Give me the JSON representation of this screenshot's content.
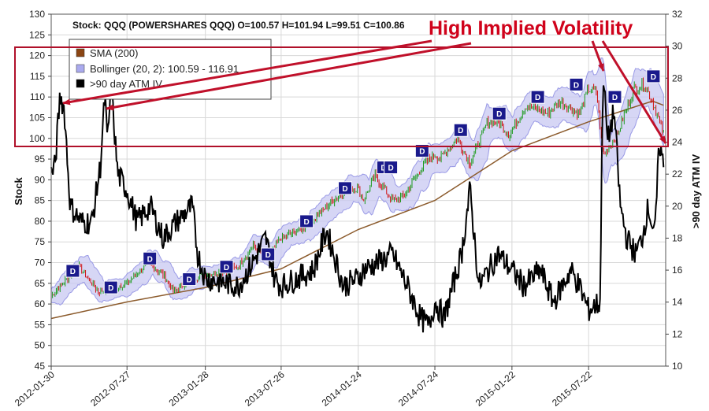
{
  "chart_data": {
    "type": "line",
    "title": "Stock: QQQ (POWERSHARES QQQ) O=100.57  H=101.94  L=99.51  C=100.86",
    "callout": "High Implied Volatility",
    "ylabel_left": "Stock",
    "ylabel_right": ">90 day ATM IV",
    "ylim_left": [
      45,
      130
    ],
    "ylim_right": [
      10,
      32
    ],
    "yticks_left": [
      45,
      50,
      55,
      60,
      65,
      70,
      75,
      80,
      85,
      90,
      95,
      100,
      105,
      110,
      115,
      120,
      125,
      130
    ],
    "yticks_right": [
      10,
      12,
      14,
      16,
      18,
      20,
      22,
      24,
      26,
      28,
      30,
      32
    ],
    "x_tick_labels": [
      "2012-01-30",
      "2012-07-27",
      "2013-01-28",
      "2013-07-26",
      "2014-01-24",
      "2014-07-24",
      "2015-01-22",
      "2015-07-22"
    ],
    "grid": true,
    "legend_position": "top-left",
    "legend": [
      {
        "label": "SMA (200)",
        "color": "#8b4513"
      },
      {
        "label": "Bollinger (20, 2): 100.59 - 116.91",
        "color": "#aaaaee"
      },
      {
        "label": ">90 day ATM IV",
        "color": "#000000"
      }
    ],
    "price_keypoints": [
      {
        "date": "2012-01-30",
        "close": 62
      },
      {
        "date": "2012-03-15",
        "close": 67
      },
      {
        "date": "2012-04-05",
        "close": 69
      },
      {
        "date": "2012-05-20",
        "close": 63
      },
      {
        "date": "2012-06-30",
        "close": 64
      },
      {
        "date": "2012-07-27",
        "close": 65
      },
      {
        "date": "2012-09-15",
        "close": 70
      },
      {
        "date": "2012-10-20",
        "close": 67
      },
      {
        "date": "2012-11-15",
        "close": 63
      },
      {
        "date": "2012-12-20",
        "close": 66
      },
      {
        "date": "2013-01-28",
        "close": 67
      },
      {
        "date": "2013-03-15",
        "close": 68
      },
      {
        "date": "2013-04-15",
        "close": 69
      },
      {
        "date": "2013-05-20",
        "close": 74
      },
      {
        "date": "2013-06-25",
        "close": 71
      },
      {
        "date": "2013-07-26",
        "close": 76
      },
      {
        "date": "2013-09-10",
        "close": 78
      },
      {
        "date": "2013-10-15",
        "close": 81
      },
      {
        "date": "2013-11-25",
        "close": 85
      },
      {
        "date": "2013-12-31",
        "close": 88
      },
      {
        "date": "2014-01-24",
        "close": 88
      },
      {
        "date": "2014-02-05",
        "close": 85
      },
      {
        "date": "2014-03-05",
        "close": 91
      },
      {
        "date": "2014-04-15",
        "close": 85
      },
      {
        "date": "2014-05-10",
        "close": 86
      },
      {
        "date": "2014-06-30",
        "close": 94
      },
      {
        "date": "2014-07-24",
        "close": 96
      },
      {
        "date": "2014-08-05",
        "close": 95
      },
      {
        "date": "2014-09-15",
        "close": 100
      },
      {
        "date": "2014-10-15",
        "close": 94
      },
      {
        "date": "2014-11-25",
        "close": 104
      },
      {
        "date": "2014-12-20",
        "close": 104
      },
      {
        "date": "2015-01-15",
        "close": 101
      },
      {
        "date": "2015-02-25",
        "close": 108
      },
      {
        "date": "2015-04-15",
        "close": 106
      },
      {
        "date": "2015-05-15",
        "close": 109
      },
      {
        "date": "2015-06-30",
        "close": 106
      },
      {
        "date": "2015-07-22",
        "close": 112
      },
      {
        "date": "2015-08-10",
        "close": 111
      },
      {
        "date": "2015-08-25",
        "close": 96
      },
      {
        "date": "2015-09-28",
        "close": 101
      },
      {
        "date": "2015-11-05",
        "close": 112
      },
      {
        "date": "2015-12-01",
        "close": 113
      },
      {
        "date": "2015-12-20",
        "close": 109
      },
      {
        "date": "2016-01-15",
        "close": 101
      }
    ],
    "sma200_keypoints": [
      {
        "date": "2012-01-30",
        "close": 56.5
      },
      {
        "date": "2012-07-27",
        "close": 60.5
      },
      {
        "date": "2013-01-28",
        "close": 64
      },
      {
        "date": "2013-07-26",
        "close": 68.5
      },
      {
        "date": "2014-01-24",
        "close": 78
      },
      {
        "date": "2014-07-24",
        "close": 85
      },
      {
        "date": "2015-01-22",
        "close": 97
      },
      {
        "date": "2015-07-22",
        "close": 104
      },
      {
        "date": "2015-12-20",
        "close": 109
      },
      {
        "date": "2016-01-15",
        "close": 108
      }
    ],
    "iv_keypoints": [
      {
        "date": "2012-01-30",
        "iv": 22
      },
      {
        "date": "2012-02-08",
        "iv": 22.5
      },
      {
        "date": "2012-02-20",
        "iv": 27
      },
      {
        "date": "2012-03-01",
        "iv": 26
      },
      {
        "date": "2012-03-15",
        "iv": 20
      },
      {
        "date": "2012-04-10",
        "iv": 19
      },
      {
        "date": "2012-05-05",
        "iv": 19
      },
      {
        "date": "2012-05-25",
        "iv": 22.5
      },
      {
        "date": "2012-06-05",
        "iv": 27
      },
      {
        "date": "2012-06-10",
        "iv": 24
      },
      {
        "date": "2012-06-20",
        "iv": 27.3
      },
      {
        "date": "2012-07-05",
        "iv": 22
      },
      {
        "date": "2012-07-27",
        "iv": 21
      },
      {
        "date": "2012-08-20",
        "iv": 19
      },
      {
        "date": "2012-09-20",
        "iv": 20
      },
      {
        "date": "2012-10-20",
        "iv": 18
      },
      {
        "date": "2012-11-20",
        "iv": 19
      },
      {
        "date": "2012-12-28",
        "iv": 20
      },
      {
        "date": "2013-01-10",
        "iv": 17
      },
      {
        "date": "2013-01-28",
        "iv": 15.5
      },
      {
        "date": "2013-04-15",
        "iv": 15
      },
      {
        "date": "2013-05-10",
        "iv": 16
      },
      {
        "date": "2013-06-20",
        "iv": 18
      },
      {
        "date": "2013-07-10",
        "iv": 15.5
      },
      {
        "date": "2013-07-26",
        "iv": 15
      },
      {
        "date": "2013-10-10",
        "iv": 16
      },
      {
        "date": "2013-11-10",
        "iv": 18.5
      },
      {
        "date": "2013-12-20",
        "iv": 15
      },
      {
        "date": "2014-01-24",
        "iv": 15.5
      },
      {
        "date": "2014-02-05",
        "iv": 16
      },
      {
        "date": "2014-04-15",
        "iv": 17
      },
      {
        "date": "2014-05-20",
        "iv": 15
      },
      {
        "date": "2014-06-20",
        "iv": 13
      },
      {
        "date": "2014-07-10",
        "iv": 12.5
      },
      {
        "date": "2014-07-24",
        "iv": 14
      },
      {
        "date": "2014-08-15",
        "iv": 13
      },
      {
        "date": "2014-09-25",
        "iv": 17
      },
      {
        "date": "2014-10-15",
        "iv": 21
      },
      {
        "date": "2014-11-05",
        "iv": 15
      },
      {
        "date": "2014-12-20",
        "iv": 17
      },
      {
        "date": "2015-01-22",
        "iv": 16
      },
      {
        "date": "2015-02-20",
        "iv": 15
      },
      {
        "date": "2015-03-30",
        "iv": 16
      },
      {
        "date": "2015-04-30",
        "iv": 14
      },
      {
        "date": "2015-06-10",
        "iv": 16
      },
      {
        "date": "2015-06-30",
        "iv": 15
      },
      {
        "date": "2015-07-22",
        "iv": 13.5
      },
      {
        "date": "2015-08-18",
        "iv": 14
      },
      {
        "date": "2015-08-25",
        "iv": 28.5
      },
      {
        "date": "2015-09-05",
        "iv": 24
      },
      {
        "date": "2015-09-20",
        "iv": 26
      },
      {
        "date": "2015-10-05",
        "iv": 20
      },
      {
        "date": "2015-10-20",
        "iv": 18
      },
      {
        "date": "2015-11-10",
        "iv": 17
      },
      {
        "date": "2015-11-25",
        "iv": 18
      },
      {
        "date": "2015-12-10",
        "iv": 20
      },
      {
        "date": "2015-12-25",
        "iv": 18
      },
      {
        "date": "2016-01-05",
        "iv": 24
      },
      {
        "date": "2016-01-15",
        "iv": 22.5
      }
    ],
    "dividend_marker_label": "D",
    "dividend_markers": [
      {
        "date": "2012-03-20",
        "value": 68
      },
      {
        "date": "2012-06-18",
        "value": 64
      },
      {
        "date": "2012-09-18",
        "value": 71
      },
      {
        "date": "2012-12-20",
        "value": 66
      },
      {
        "date": "2013-03-18",
        "value": 69
      },
      {
        "date": "2013-06-24",
        "value": 72
      },
      {
        "date": "2013-09-23",
        "value": 80
      },
      {
        "date": "2013-12-23",
        "value": 88
      },
      {
        "date": "2014-03-24",
        "value": 93
      },
      {
        "date": "2014-04-10",
        "value": 93
      },
      {
        "date": "2014-06-23",
        "value": 97
      },
      {
        "date": "2014-09-22",
        "value": 102
      },
      {
        "date": "2014-12-22",
        "value": 106
      },
      {
        "date": "2015-03-23",
        "value": 110
      },
      {
        "date": "2015-06-22",
        "value": 113
      },
      {
        "date": "2015-09-21",
        "value": 110
      },
      {
        "date": "2015-12-21",
        "value": 115
      }
    ]
  }
}
